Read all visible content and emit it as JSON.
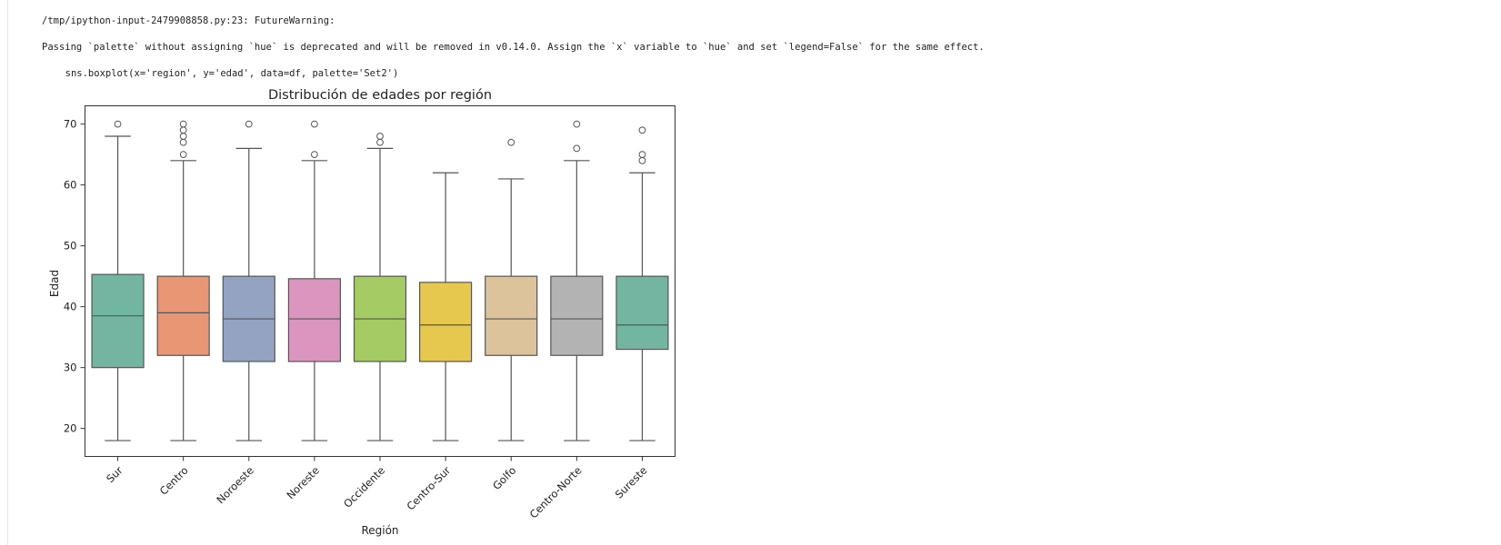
{
  "notebook_output": {
    "warning_line": "/tmp/ipython-input-2479908858.py:23: FutureWarning:",
    "message_line": "Passing `palette` without assigning `hue` is deprecated and will be removed in v0.14.0. Assign the `x` variable to `hue` and set `legend=False` for the same effect.",
    "code_line": "  sns.boxplot(x='region', y='edad', data=df, palette='Set2')"
  },
  "chart_data": {
    "type": "box",
    "title": "Distribución de edades por región",
    "xlabel": "Región",
    "ylabel": "Edad",
    "ylim": [
      15.4,
      73
    ],
    "yticks": [
      20,
      30,
      40,
      50,
      60,
      70
    ],
    "grid": false,
    "categories": [
      "Sur",
      "Centro",
      "Noroeste",
      "Noreste",
      "Occidente",
      "Centro-Sur",
      "Golfo",
      "Centro-Norte",
      "Sureste"
    ],
    "colors": [
      "#72b6a1",
      "#e99675",
      "#95a3c3",
      "#db96c0",
      "#a4cb64",
      "#e5c84d",
      "#dcc39c",
      "#b3b3b3",
      "#72b6a1"
    ],
    "boxes": [
      {
        "whislo": 18,
        "q1": 30,
        "med": 38.5,
        "q3": 45.3,
        "whishi": 68,
        "fliers": [
          70
        ]
      },
      {
        "whislo": 18,
        "q1": 32,
        "med": 39,
        "q3": 45,
        "whishi": 64,
        "fliers": [
          65,
          67,
          68,
          69,
          70
        ]
      },
      {
        "whislo": 18,
        "q1": 31,
        "med": 38,
        "q3": 45,
        "whishi": 66,
        "fliers": [
          70
        ]
      },
      {
        "whislo": 18,
        "q1": 31,
        "med": 38,
        "q3": 44.6,
        "whishi": 64,
        "fliers": [
          65,
          70
        ]
      },
      {
        "whislo": 18,
        "q1": 31,
        "med": 38,
        "q3": 45,
        "whishi": 66,
        "fliers": [
          67,
          68
        ]
      },
      {
        "whislo": 18,
        "q1": 31,
        "med": 37,
        "q3": 44,
        "whishi": 62,
        "fliers": []
      },
      {
        "whislo": 18,
        "q1": 32,
        "med": 38,
        "q3": 45,
        "whishi": 61,
        "fliers": [
          67
        ]
      },
      {
        "whislo": 18,
        "q1": 32,
        "med": 38,
        "q3": 45,
        "whishi": 64,
        "fliers": [
          66,
          70
        ]
      },
      {
        "whislo": 18,
        "q1": 33,
        "med": 37,
        "q3": 45,
        "whishi": 62,
        "fliers": [
          64,
          65,
          69
        ]
      }
    ]
  }
}
